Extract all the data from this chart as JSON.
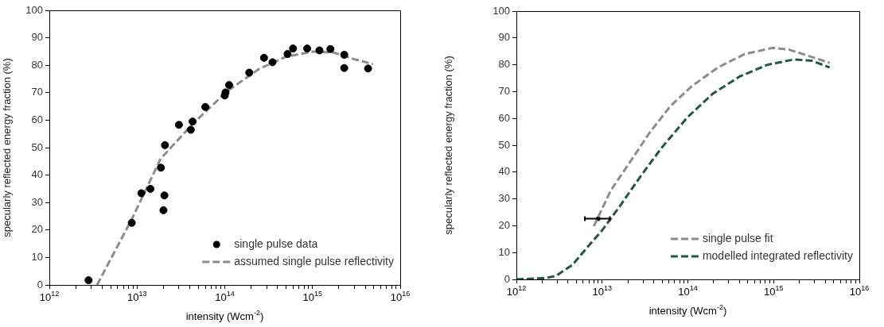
{
  "chart_data": [
    {
      "type": "scatter",
      "xlabel": "intensity (Wcm$^{-2}$)",
      "ylabel": "specularly reflected energy fraction (%)",
      "log": "x",
      "grid": false,
      "legend": "bottom right",
      "xlim": [
        1000000000000.0,
        1e+16
      ],
      "xticks": [
        {
          "value": 1000000000000.0,
          "label": "10$^{12}$"
        },
        {
          "value": 2000000000000.0,
          "label": null
        },
        {
          "value": 3000000000000.0,
          "label": null
        },
        {
          "value": 4000000000000.0,
          "label": null
        },
        {
          "value": 5000000000000.0,
          "label": null
        },
        {
          "value": 6000000000000.0,
          "label": null
        },
        {
          "value": 7000000000000.0,
          "label": null
        },
        {
          "value": 8000000000000.0,
          "label": null
        },
        {
          "value": 9000000000000.0,
          "label": null
        },
        {
          "value": 10000000000000.0,
          "label": "10$^{13}$"
        },
        {
          "value": 20000000000000.0,
          "label": null
        },
        {
          "value": 30000000000000.0,
          "label": null
        },
        {
          "value": 40000000000000.0,
          "label": null
        },
        {
          "value": 50000000000000.0,
          "label": null
        },
        {
          "value": 60000000000000.0,
          "label": null
        },
        {
          "value": 70000000000000.0,
          "label": null
        },
        {
          "value": 80000000000000.0,
          "label": null
        },
        {
          "value": 90000000000000.0,
          "label": null
        },
        {
          "value": 100000000000000.0,
          "label": "10$^{14}$"
        },
        {
          "value": 200000000000000.0,
          "label": null
        },
        {
          "value": 300000000000000.0,
          "label": null
        },
        {
          "value": 400000000000000.0,
          "label": null
        },
        {
          "value": 500000000000000.0,
          "label": null
        },
        {
          "value": 600000000000000.0,
          "label": null
        },
        {
          "value": 700000000000000.0,
          "label": null
        },
        {
          "value": 800000000000000.0,
          "label": null
        },
        {
          "value": 900000000000000.0,
          "label": null
        },
        {
          "value": 1000000000000000.0,
          "label": "10$^{15}$"
        },
        {
          "value": 2000000000000000.0,
          "label": null
        },
        {
          "value": 3000000000000000.0,
          "label": null
        },
        {
          "value": 4000000000000000.0,
          "label": null
        },
        {
          "value": 5000000000000000.0,
          "label": null
        },
        {
          "value": 6000000000000000.0,
          "label": null
        },
        {
          "value": 7000000000000000.0,
          "label": null
        },
        {
          "value": 8000000000000000.0,
          "label": null
        },
        {
          "value": 9000000000000000.0,
          "label": null
        },
        {
          "value": 1e+16,
          "label": "10$^{16}$"
        }
      ],
      "ylim": [
        0,
        100
      ],
      "yticks": [
        0,
        10,
        20,
        30,
        40,
        50,
        60,
        70,
        80,
        90,
        100
      ],
      "series": [
        {
          "name": "single pulse data",
          "marker": "circle",
          "color": "#000000",
          "x": [
            2800000000000.0,
            8700000000000.0,
            11200000000000.0,
            14200000000000.0,
            18700000000000.0,
            20800000000000.0,
            20500000000000.0,
            20000000000000.0,
            30000000000000.0,
            41000000000000.0,
            43000000000000.0,
            60000000000000.0,
            100000000000000.0,
            102000000000000.0,
            112000000000000.0,
            190000000000000.0,
            280000000000000.0,
            350000000000000.0,
            520000000000000.0,
            600000000000000.0,
            870000000000000.0,
            1200000000000000.0,
            1600000000000000.0,
            2300000000000000.0,
            2300000000000000.0,
            4300000000000000.0
          ],
          "values": [
            1.7,
            22.6,
            33.4,
            35,
            42.7,
            50.9,
            32.6,
            27.2,
            58.3,
            56.5,
            59.5,
            64.8,
            69,
            70.1,
            72.8,
            77.3,
            82.7,
            81.1,
            84.1,
            86.1,
            86.1,
            85.4,
            85.9,
            83.8,
            79,
            78.8
          ]
        },
        {
          "name": "assumed single pulse reflectivity",
          "type": "line",
          "marker": "none",
          "line_style": "dashed",
          "color": "#8c8c8c",
          "x": [
            3500000000000.0,
            8700000000000.0,
            18600000000000.0,
            43000000000000.0,
            107000000000000.0,
            245000000000000.0,
            500000000000000.0,
            1000000000000000.0,
            1740000000000000.0,
            3000000000000000.0,
            4900000000000000.0
          ],
          "values": [
            0,
            23.9,
            46,
            58.6,
            70.6,
            78.6,
            83.1,
            85,
            84.6,
            82.2,
            80.4
          ]
        }
      ]
    },
    {
      "type": "line",
      "xlabel": "intensity (Wcm$^{-2}$)",
      "ylabel": "specularly reflected energy fraction (%)",
      "log": "x",
      "grid": false,
      "legend": "bottom right",
      "xlim": [
        1000000000000.0,
        1e+16
      ],
      "xticks": [
        {
          "value": 1000000000000.0,
          "label": "10$^{12}$"
        },
        {
          "value": 2000000000000.0,
          "label": null
        },
        {
          "value": 3000000000000.0,
          "label": null
        },
        {
          "value": 4000000000000.0,
          "label": null
        },
        {
          "value": 5000000000000.0,
          "label": null
        },
        {
          "value": 6000000000000.0,
          "label": null
        },
        {
          "value": 7000000000000.0,
          "label": null
        },
        {
          "value": 8000000000000.0,
          "label": null
        },
        {
          "value": 9000000000000.0,
          "label": null
        },
        {
          "value": 10000000000000.0,
          "label": "10$^{13}$"
        },
        {
          "value": 20000000000000.0,
          "label": null
        },
        {
          "value": 30000000000000.0,
          "label": null
        },
        {
          "value": 40000000000000.0,
          "label": null
        },
        {
          "value": 50000000000000.0,
          "label": null
        },
        {
          "value": 60000000000000.0,
          "label": null
        },
        {
          "value": 70000000000000.0,
          "label": null
        },
        {
          "value": 80000000000000.0,
          "label": null
        },
        {
          "value": 90000000000000.0,
          "label": null
        },
        {
          "value": 100000000000000.0,
          "label": "10$^{14}$"
        },
        {
          "value": 200000000000000.0,
          "label": null
        },
        {
          "value": 300000000000000.0,
          "label": null
        },
        {
          "value": 400000000000000.0,
          "label": null
        },
        {
          "value": 500000000000000.0,
          "label": null
        },
        {
          "value": 600000000000000.0,
          "label": null
        },
        {
          "value": 700000000000000.0,
          "label": null
        },
        {
          "value": 800000000000000.0,
          "label": null
        },
        {
          "value": 900000000000000.0,
          "label": null
        },
        {
          "value": 1000000000000000.0,
          "label": "10$^{15}$"
        },
        {
          "value": 2000000000000000.0,
          "label": null
        },
        {
          "value": 3000000000000000.0,
          "label": null
        },
        {
          "value": 4000000000000000.0,
          "label": null
        },
        {
          "value": 5000000000000000.0,
          "label": null
        },
        {
          "value": 6000000000000000.0,
          "label": null
        },
        {
          "value": 7000000000000000.0,
          "label": null
        },
        {
          "value": 8000000000000000.0,
          "label": null
        },
        {
          "value": 9000000000000000.0,
          "label": null
        },
        {
          "value": 1e+16,
          "label": "10$^{16}$"
        }
      ],
      "ylim": [
        0,
        100
      ],
      "yticks": [
        0,
        10,
        20,
        30,
        40,
        50,
        60,
        70,
        80,
        90,
        100
      ],
      "series": [
        {
          "name": "single pulse fit",
          "marker": "none",
          "line_style": "dashed",
          "color": "#8c8c8c",
          "x": [
            8000000000000.0,
            12600000000000.0,
            20400000000000.0,
            36000000000000.0,
            63000000000000.0,
            112000000000000.0,
            224000000000000.0,
            460000000000000.0,
            980000000000000.0,
            1500000000000000.0,
            2450000000000000.0,
            4500000000000000.0
          ],
          "values": [
            19.8,
            33.1,
            43,
            54.8,
            64.7,
            72.1,
            79,
            84,
            86.3,
            85.7,
            83.5,
            80.7
          ]
        },
        {
          "name": "modelled integrated reflectivity",
          "marker": "none",
          "line_style": "dashed",
          "color": "#1e5a3c",
          "x": [
            1000000000000.0,
            2200000000000.0,
            2900000000000.0,
            4500000000000.0,
            6300000000000.0,
            10000000000000.0,
            16000000000000.0,
            27500000000000.0,
            49000000000000.0,
            98000000000000.0,
            195000000000000.0,
            400000000000000.0,
            850000000000000.0,
            1740000000000000.0,
            2800000000000000.0,
            4500000000000000.0
          ],
          "values": [
            0,
            0.5,
            1.3,
            5.4,
            10.9,
            18.3,
            27.2,
            38,
            48.9,
            60.3,
            69.2,
            75.6,
            80,
            82,
            81.5,
            79
          ]
        },
        {
          "type": "scatter",
          "marker": "circle",
          "color": "#000000",
          "x": [
            9000000000000.0
          ],
          "values": [
            22.6
          ],
          "xerrors": [
            [
              6300000000000.0,
              12300000000000.0
            ]
          ]
        }
      ]
    }
  ]
}
